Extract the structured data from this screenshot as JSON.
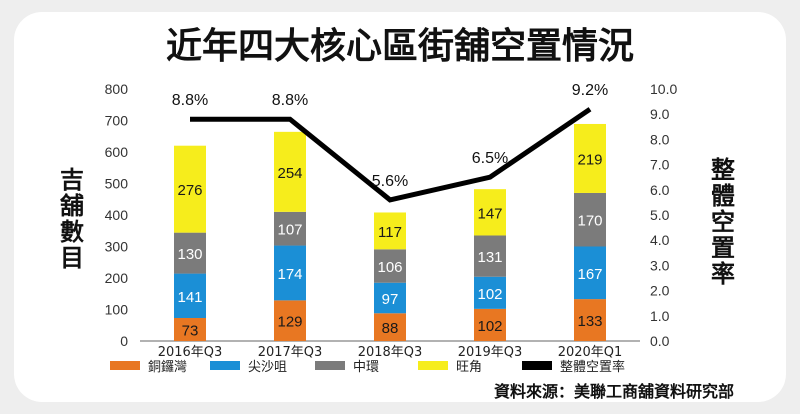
{
  "chart_data": {
    "type": "bar",
    "title": "近年四大核心區街舖空置情況",
    "categories": [
      "2016年Q3",
      "2017年Q3",
      "2018年Q3",
      "2019年Q3",
      "2020年Q1"
    ],
    "series": [
      {
        "name": "銅鑼灣",
        "values": [
          73,
          129,
          88,
          102,
          133
        ],
        "color": "#e87722"
      },
      {
        "name": "尖沙咀",
        "values": [
          141,
          174,
          97,
          102,
          167
        ],
        "color": "#1b8fd6"
      },
      {
        "name": "中環",
        "values": [
          130,
          107,
          106,
          131,
          170
        ],
        "color": "#7b7b7b"
      },
      {
        "name": "旺角",
        "values": [
          276,
          254,
          117,
          147,
          219
        ],
        "color": "#f6ed1c"
      }
    ],
    "line": {
      "name": "整體空置率",
      "values": [
        8.8,
        8.8,
        5.6,
        6.5,
        9.2
      ],
      "labels": [
        "8.8%",
        "8.8%",
        "5.6%",
        "6.5%",
        "9.2%"
      ],
      "color": "#000000"
    },
    "ylabel_left": "吉舖數目",
    "ylabel_right": "整體空置率",
    "ylim_left": [
      0,
      800
    ],
    "ylim_right": [
      0.0,
      10.0
    ],
    "yticks_left": [
      "0",
      "100",
      "200",
      "300",
      "400",
      "500",
      "600",
      "700",
      "800"
    ],
    "yticks_right": [
      "0.0",
      "1.0",
      "2.0",
      "3.0",
      "4.0",
      "5.0",
      "6.0",
      "7.0",
      "8.0",
      "9.0",
      "10.0"
    ],
    "grid": false,
    "legend_position": "bottom",
    "source": "資料來源：美聯工商舖資料研究部"
  }
}
